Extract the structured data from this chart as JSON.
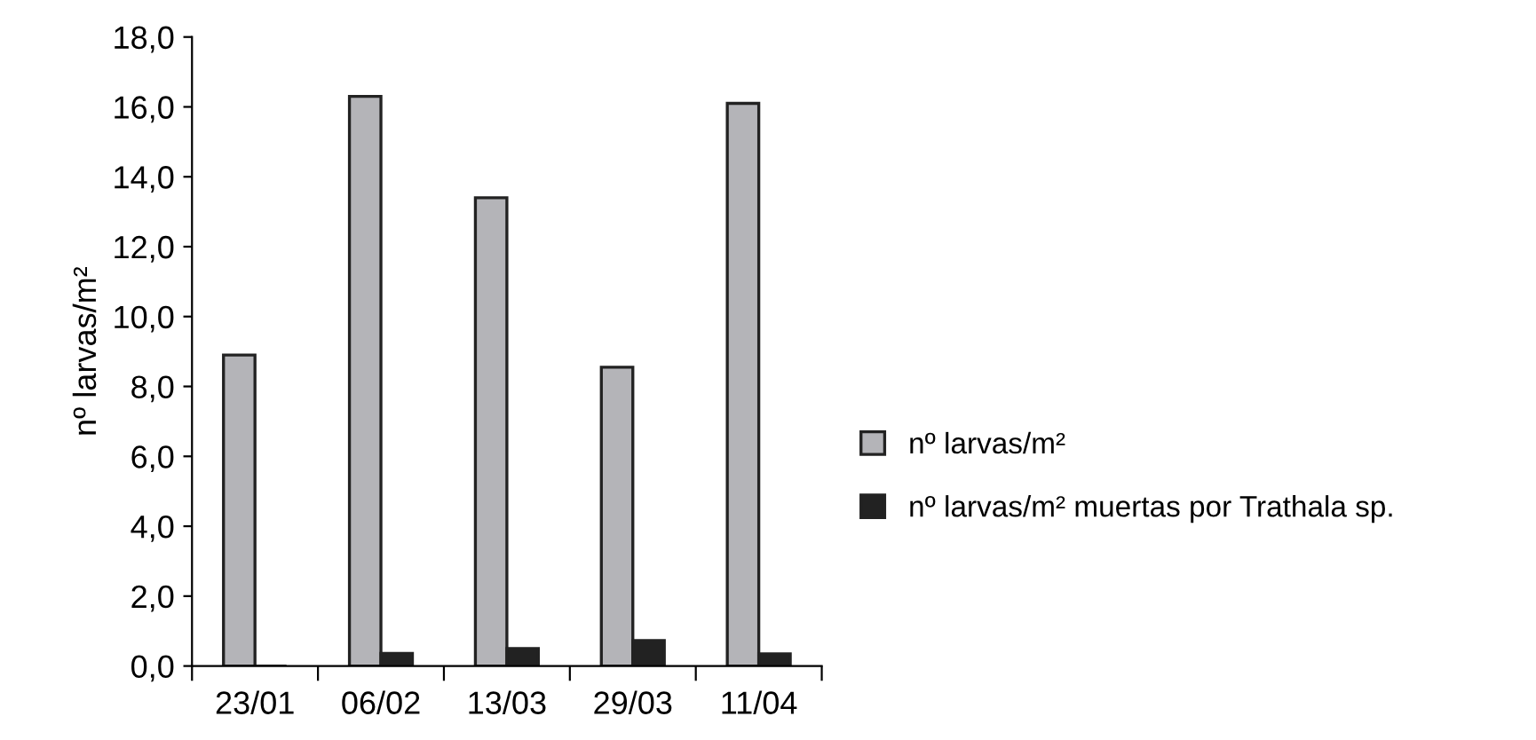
{
  "chart_data": {
    "type": "bar",
    "ylabel": "nº larvas/m²",
    "categories": [
      "23/01",
      "06/02",
      "13/03",
      "29/03",
      "11/04"
    ],
    "series": [
      {
        "name": "nº larvas/m²",
        "color": "#b4b4b8",
        "values": [
          8.9,
          16.3,
          13.4,
          8.55,
          16.1
        ]
      },
      {
        "name": "nº larvas/m² muertas por Trathala sp.",
        "color": "#222222",
        "values": [
          0,
          0.36,
          0.5,
          0.73,
          0.35
        ]
      }
    ],
    "ylim": [
      0,
      18
    ],
    "yticks": [
      {
        "value": 0,
        "label": "0,0"
      },
      {
        "value": 2,
        "label": "2,0"
      },
      {
        "value": 4,
        "label": "4,0"
      },
      {
        "value": 6,
        "label": "6,0"
      },
      {
        "value": 8,
        "label": "8,0"
      },
      {
        "value": 10,
        "label": "10,0"
      },
      {
        "value": 12,
        "label": "12,0"
      },
      {
        "value": 14,
        "label": "14,0"
      },
      {
        "value": 16,
        "label": "16,0"
      },
      {
        "value": 18,
        "label": "18,0"
      }
    ],
    "grid": false,
    "legend": "right"
  }
}
